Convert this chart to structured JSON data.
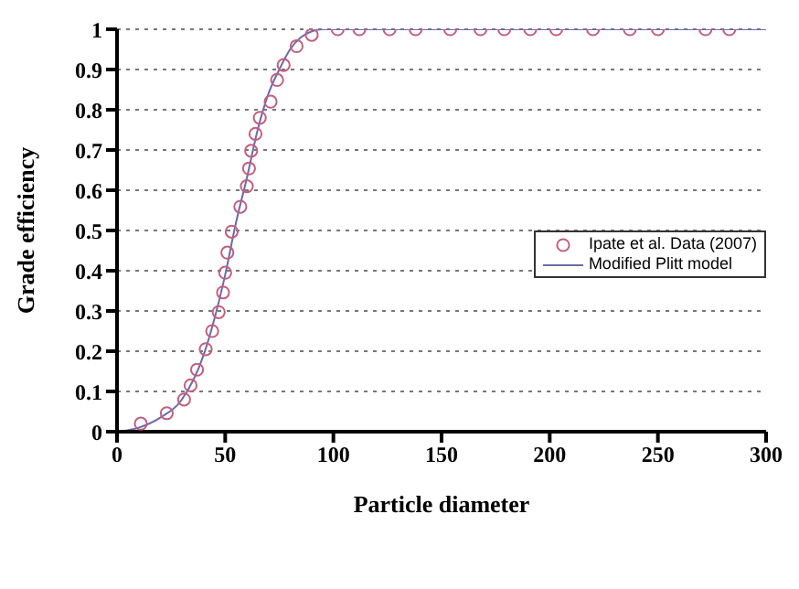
{
  "chart_data": {
    "type": "scatter",
    "xlabel": "Particle diameter",
    "ylabel": "Grade efficiency",
    "xlim": [
      0,
      300
    ],
    "xticks": [
      0,
      50,
      100,
      150,
      200,
      250,
      300
    ],
    "ylim": [
      0,
      1
    ],
    "yticks": [
      0,
      0.1,
      0.2,
      0.3,
      0.4,
      0.5,
      0.6,
      0.7,
      0.8,
      0.9,
      1
    ],
    "grid": "y",
    "legend": "right",
    "series": [
      {
        "name": "Ipate et al. Data (2007)",
        "marker": "circle",
        "color": "#c06080",
        "x": [
          11,
          23,
          31,
          34,
          37,
          41,
          44,
          47,
          49,
          50,
          51,
          53,
          57,
          60,
          61,
          62,
          64,
          66,
          71,
          74,
          77,
          83,
          90,
          102,
          112,
          126,
          138,
          154,
          168,
          179,
          191,
          203,
          220,
          237,
          250,
          272,
          283
        ],
        "values": [
          0.02,
          0.046,
          0.08,
          0.115,
          0.154,
          0.205,
          0.25,
          0.297,
          0.346,
          0.395,
          0.445,
          0.497,
          0.559,
          0.61,
          0.654,
          0.698,
          0.74,
          0.78,
          0.82,
          0.874,
          0.911,
          0.958,
          0.986,
          1,
          1,
          1,
          1,
          1,
          1,
          1,
          1,
          1,
          1,
          1,
          1,
          1,
          1
        ]
      },
      {
        "name": "Modified Plitt model",
        "type": "line",
        "marker": "none",
        "color": "#6a6aa8",
        "line_style": "solid",
        "x": [
          0,
          10,
          20,
          30,
          40,
          45,
          50,
          55,
          60,
          65,
          70,
          75,
          80,
          85,
          90,
          95,
          300
        ],
        "values": [
          0,
          0.01,
          0.035,
          0.08,
          0.19,
          0.28,
          0.39,
          0.52,
          0.63,
          0.75,
          0.84,
          0.9,
          0.95,
          0.98,
          0.995,
          1,
          1
        ]
      }
    ]
  }
}
